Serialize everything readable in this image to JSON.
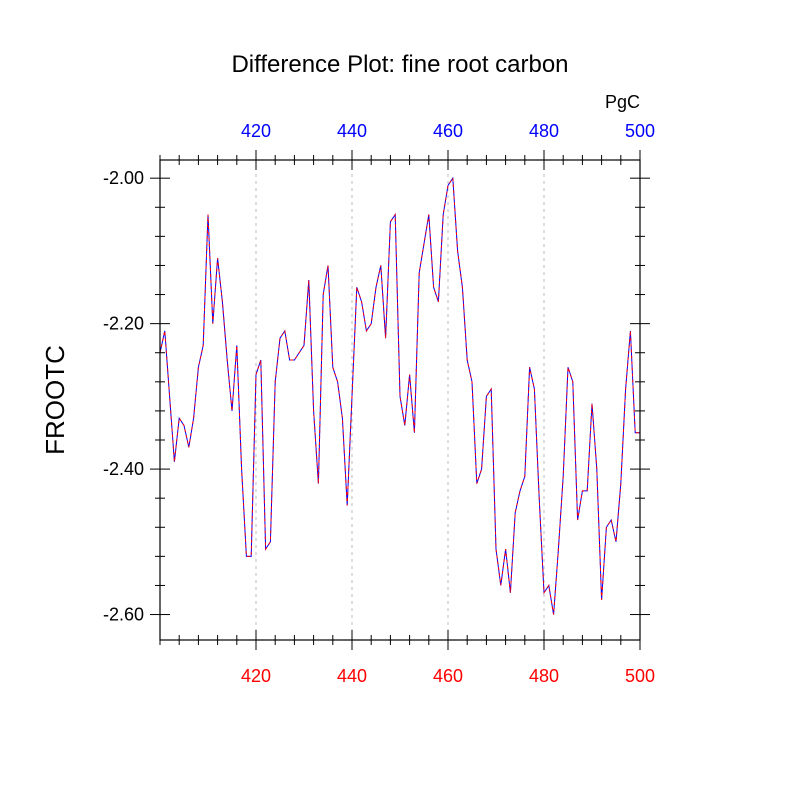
{
  "chart_data": {
    "type": "line",
    "title": "Difference Plot: fine root carbon",
    "units": "PgC",
    "ylabel": "FROOTC",
    "xlim": [
      400,
      500
    ],
    "ylim": [
      -2.635,
      -1.975
    ],
    "bottom_ticks": {
      "values": [
        420,
        440,
        460,
        480,
        500
      ],
      "labels": [
        "420",
        "440",
        "460",
        "480",
        "500"
      ],
      "color": "#ff0000"
    },
    "top_ticks": {
      "values": [
        420,
        440,
        460,
        480,
        500
      ],
      "labels": [
        "420",
        "440",
        "460",
        "480",
        "500"
      ],
      "color": "#0000ff"
    },
    "y_ticks": {
      "values": [
        -2.0,
        -2.2,
        -2.4,
        -2.6
      ],
      "labels": [
        "-2.00",
        "-2.20",
        "-2.40",
        "-2.60"
      ]
    },
    "grid": "vertical dotted at major x ticks",
    "series": [
      {
        "line_color": "#0000ff",
        "dash_color": "#ff0000",
        "x": [
          400,
          401,
          402,
          403,
          404,
          405,
          406,
          407,
          408,
          409,
          410,
          411,
          412,
          413,
          414,
          415,
          416,
          417,
          418,
          419,
          420,
          421,
          422,
          423,
          424,
          425,
          426,
          427,
          428,
          429,
          430,
          431,
          432,
          433,
          434,
          435,
          436,
          437,
          438,
          439,
          440,
          441,
          442,
          443,
          444,
          445,
          446,
          447,
          448,
          449,
          450,
          451,
          452,
          453,
          454,
          455,
          456,
          457,
          458,
          459,
          460,
          461,
          462,
          463,
          464,
          465,
          466,
          467,
          468,
          469,
          470,
          471,
          472,
          473,
          474,
          475,
          476,
          477,
          478,
          479,
          480,
          481,
          482,
          483,
          484,
          485,
          486,
          487,
          488,
          489,
          490,
          491,
          492,
          493,
          494,
          495,
          496,
          497,
          498,
          499,
          500
        ],
        "y": [
          -2.24,
          -2.21,
          -2.3,
          -2.39,
          -2.33,
          -2.34,
          -2.37,
          -2.33,
          -2.26,
          -2.23,
          -2.05,
          -2.2,
          -2.11,
          -2.17,
          -2.25,
          -2.32,
          -2.23,
          -2.4,
          -2.52,
          -2.52,
          -2.27,
          -2.25,
          -2.51,
          -2.5,
          -2.28,
          -2.22,
          -2.21,
          -2.25,
          -2.25,
          -2.24,
          -2.23,
          -2.14,
          -2.32,
          -2.42,
          -2.16,
          -2.12,
          -2.26,
          -2.28,
          -2.33,
          -2.45,
          -2.3,
          -2.15,
          -2.17,
          -2.21,
          -2.2,
          -2.15,
          -2.12,
          -2.22,
          -2.06,
          -2.05,
          -2.3,
          -2.34,
          -2.27,
          -2.35,
          -2.13,
          -2.09,
          -2.05,
          -2.15,
          -2.17,
          -2.05,
          -2.01,
          -2.0,
          -2.1,
          -2.15,
          -2.25,
          -2.28,
          -2.42,
          -2.4,
          -2.3,
          -2.29,
          -2.51,
          -2.56,
          -2.51,
          -2.57,
          -2.46,
          -2.43,
          -2.41,
          -2.26,
          -2.29,
          -2.44,
          -2.57,
          -2.56,
          -2.6,
          -2.51,
          -2.41,
          -2.26,
          -2.28,
          -2.47,
          -2.43,
          -2.43,
          -2.31,
          -2.4,
          -2.58,
          -2.48,
          -2.47,
          -2.5,
          -2.42,
          -2.29,
          -2.21,
          -2.35,
          -2.35
        ]
      }
    ]
  }
}
